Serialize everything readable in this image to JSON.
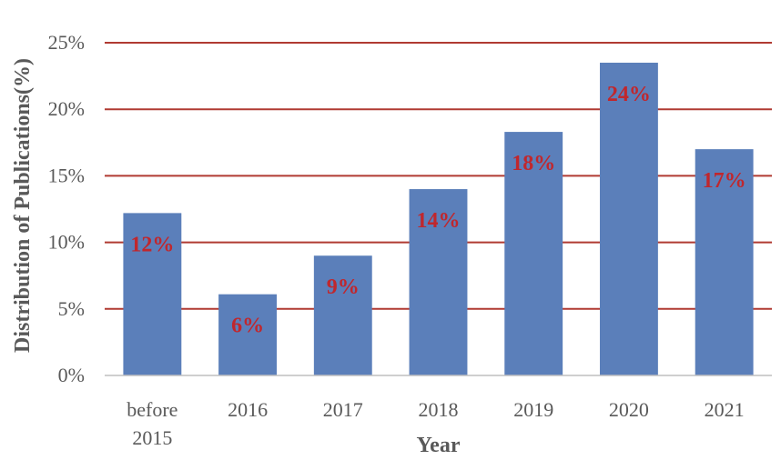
{
  "chart_data": {
    "type": "bar",
    "title": "",
    "xlabel": "Year",
    "ylabel": "Distribution of Publications(%)",
    "categories": [
      [
        "before",
        "2015"
      ],
      [
        "2016"
      ],
      [
        "2017"
      ],
      [
        "2018"
      ],
      [
        "2019"
      ],
      [
        "2020"
      ],
      [
        "2021"
      ]
    ],
    "values": [
      12.2,
      6.1,
      9.0,
      14.0,
      18.3,
      23.5,
      17.0
    ],
    "data_labels": [
      "12%",
      "6%",
      "9%",
      "14%",
      "18%",
      "24%",
      "17%"
    ],
    "yticks": [
      "0%",
      "5%",
      "10%",
      "15%",
      "20%",
      "25%"
    ],
    "ytick_values": [
      0,
      5,
      10,
      15,
      20,
      25
    ],
    "ylim": [
      0,
      25
    ],
    "grid": true,
    "legend": "none",
    "colors": {
      "bar": "#5b7fba",
      "grid": "#b03a32",
      "data_label": "#c0272d",
      "axis": "#bfbfbf"
    }
  }
}
